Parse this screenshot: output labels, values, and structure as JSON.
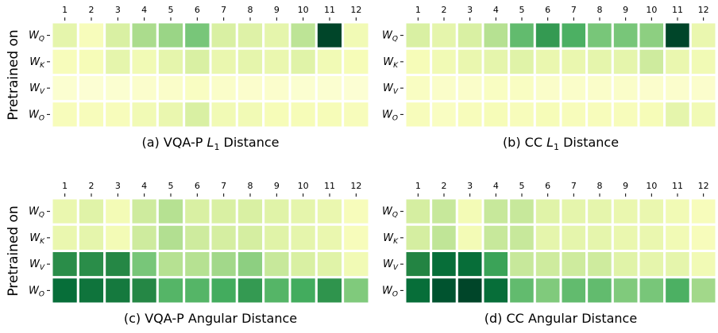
{
  "chart_data": [
    {
      "type": "heatmap",
      "colormap": "YlGn",
      "clim": [
        0,
        1
      ],
      "title": [
        {
          "text": "(a) VQA-P "
        },
        {
          "text": "L",
          "italic": true
        },
        {
          "text": "1",
          "sub": true
        },
        {
          "text": " Distance"
        }
      ],
      "ylabel": "Pretrained on",
      "categories": [
        "1",
        "2",
        "3",
        "4",
        "5",
        "6",
        "7",
        "8",
        "9",
        "10",
        "11",
        "12"
      ],
      "rows": [
        {
          "label": "W",
          "subscript": "Q"
        },
        {
          "label": "W",
          "subscript": "K"
        },
        {
          "label": "W",
          "subscript": "V"
        },
        {
          "label": "W",
          "subscript": "O"
        }
      ],
      "values": [
        [
          0.2,
          0.12,
          0.25,
          0.38,
          0.42,
          0.5,
          0.25,
          0.23,
          0.2,
          0.33,
          1.0,
          0.15
        ],
        [
          0.12,
          0.13,
          0.2,
          0.15,
          0.2,
          0.25,
          0.18,
          0.2,
          0.18,
          0.22,
          0.15,
          0.13
        ],
        [
          0.06,
          0.05,
          0.06,
          0.07,
          0.08,
          0.1,
          0.08,
          0.07,
          0.07,
          0.06,
          0.06,
          0.05
        ],
        [
          0.12,
          0.12,
          0.12,
          0.15,
          0.18,
          0.25,
          0.15,
          0.15,
          0.13,
          0.13,
          0.13,
          0.12
        ]
      ]
    },
    {
      "type": "heatmap",
      "colormap": "YlGn",
      "clim": [
        0,
        1
      ],
      "title": [
        {
          "text": "(b) CC "
        },
        {
          "text": "L",
          "italic": true
        },
        {
          "text": "1",
          "sub": true
        },
        {
          "text": " Distance"
        }
      ],
      "categories": [
        "1",
        "2",
        "3",
        "4",
        "5",
        "6",
        "7",
        "8",
        "9",
        "10",
        "11",
        "12"
      ],
      "rows": [
        {
          "label": "W",
          "subscript": "Q"
        },
        {
          "label": "W",
          "subscript": "K"
        },
        {
          "label": "W",
          "subscript": "V"
        },
        {
          "label": "W",
          "subscript": "O"
        }
      ],
      "values": [
        [
          0.25,
          0.2,
          0.25,
          0.35,
          0.55,
          0.68,
          0.6,
          0.5,
          0.5,
          0.45,
          1.0,
          0.18
        ],
        [
          0.13,
          0.15,
          0.18,
          0.2,
          0.22,
          0.18,
          0.18,
          0.2,
          0.2,
          0.28,
          0.18,
          0.15
        ],
        [
          0.1,
          0.08,
          0.08,
          0.1,
          0.1,
          0.08,
          0.08,
          0.08,
          0.08,
          0.07,
          0.07,
          0.07
        ],
        [
          0.12,
          0.1,
          0.12,
          0.13,
          0.12,
          0.13,
          0.12,
          0.12,
          0.12,
          0.13,
          0.2,
          0.15
        ]
      ]
    },
    {
      "type": "heatmap",
      "colormap": "YlGn",
      "clim": [
        0,
        1
      ],
      "title": [
        {
          "text": "(c) VQA-P Angular Distance"
        }
      ],
      "ylabel": "Pretrained on",
      "categories": [
        "1",
        "2",
        "3",
        "4",
        "5",
        "6",
        "7",
        "8",
        "9",
        "10",
        "11",
        "12"
      ],
      "rows": [
        {
          "label": "W",
          "subscript": "Q"
        },
        {
          "label": "W",
          "subscript": "K"
        },
        {
          "label": "W",
          "subscript": "V"
        },
        {
          "label": "W",
          "subscript": "O"
        }
      ],
      "values": [
        [
          0.18,
          0.22,
          0.14,
          0.28,
          0.35,
          0.25,
          0.25,
          0.25,
          0.22,
          0.2,
          0.18,
          0.12
        ],
        [
          0.18,
          0.2,
          0.14,
          0.28,
          0.36,
          0.28,
          0.26,
          0.26,
          0.22,
          0.2,
          0.18,
          0.12
        ],
        [
          0.72,
          0.72,
          0.74,
          0.5,
          0.35,
          0.35,
          0.4,
          0.45,
          0.3,
          0.25,
          0.22,
          0.15
        ],
        [
          0.85,
          0.82,
          0.8,
          0.74,
          0.58,
          0.58,
          0.62,
          0.68,
          0.58,
          0.62,
          0.7,
          0.48
        ]
      ]
    },
    {
      "type": "heatmap",
      "colormap": "YlGn",
      "clim": [
        0,
        1
      ],
      "title": [
        {
          "text": "(d) CC Angular Distance"
        }
      ],
      "categories": [
        "1",
        "2",
        "3",
        "4",
        "5",
        "6",
        "7",
        "8",
        "9",
        "10",
        "11",
        "12"
      ],
      "rows": [
        {
          "label": "W",
          "subscript": "Q"
        },
        {
          "label": "W",
          "subscript": "K"
        },
        {
          "label": "W",
          "subscript": "V"
        },
        {
          "label": "W",
          "subscript": "O"
        }
      ],
      "values": [
        [
          0.26,
          0.3,
          0.14,
          0.3,
          0.3,
          0.22,
          0.2,
          0.2,
          0.18,
          0.18,
          0.15,
          0.12
        ],
        [
          0.26,
          0.32,
          0.14,
          0.3,
          0.3,
          0.2,
          0.2,
          0.2,
          0.18,
          0.18,
          0.15,
          0.12
        ],
        [
          0.75,
          0.85,
          0.85,
          0.65,
          0.3,
          0.28,
          0.28,
          0.28,
          0.22,
          0.2,
          0.2,
          0.15
        ],
        [
          0.85,
          0.95,
          1.0,
          0.85,
          0.55,
          0.48,
          0.55,
          0.55,
          0.48,
          0.5,
          0.6,
          0.4
        ]
      ]
    }
  ]
}
